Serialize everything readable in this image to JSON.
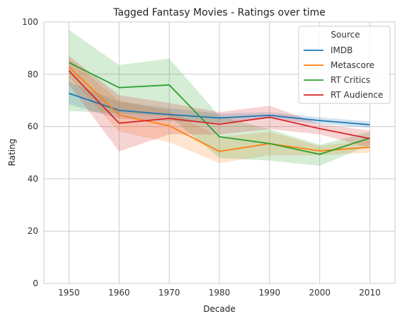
{
  "chart_data": {
    "type": "line",
    "title": "Tagged Fantasy Movies - Ratings over time",
    "xlabel": "Decade",
    "ylabel": "Rating",
    "x": [
      1950,
      1960,
      1970,
      1980,
      1990,
      2000,
      2010
    ],
    "xlim": [
      1945,
      2015
    ],
    "ylim": [
      0,
      100
    ],
    "yticks": [
      0,
      20,
      40,
      60,
      80,
      100
    ],
    "grid": true,
    "legend": {
      "title": "Source",
      "placement": "top-right"
    },
    "series": [
      {
        "name": "IMDB",
        "color": "#1f77b4",
        "values": [
          72.7,
          66.2,
          64.6,
          63.3,
          64.3,
          62.3,
          60.7
        ],
        "ci_low": [
          68.5,
          63.0,
          62.0,
          61.5,
          63.0,
          61.0,
          59.5
        ],
        "ci_high": [
          77.0,
          69.5,
          67.0,
          65.0,
          65.5,
          63.5,
          62.0
        ]
      },
      {
        "name": "Metascore",
        "color": "#ff7f0e",
        "values": [
          82.8,
          64.4,
          60.3,
          50.5,
          53.5,
          50.7,
          52.1
        ],
        "ci_low": [
          79.0,
          58.0,
          54.0,
          46.0,
          49.0,
          49.0,
          50.0
        ],
        "ci_high": [
          86.0,
          70.0,
          66.0,
          56.0,
          58.0,
          52.5,
          55.0
        ]
      },
      {
        "name": "RT Critics",
        "color": "#2ca02c",
        "values": [
          84.5,
          74.9,
          75.9,
          56.1,
          53.5,
          49.4,
          55.6
        ],
        "ci_low": [
          66.0,
          65.0,
          64.0,
          48.0,
          47.0,
          45.0,
          53.0
        ],
        "ci_high": [
          97.0,
          83.5,
          86.0,
          64.0,
          59.0,
          53.0,
          58.0
        ]
      },
      {
        "name": "RT Audience",
        "color": "#d62728",
        "values": [
          81.3,
          61.3,
          63.1,
          60.9,
          63.6,
          59.2,
          55.4
        ],
        "ci_low": [
          76.0,
          50.5,
          57.0,
          57.0,
          59.0,
          57.0,
          52.0
        ],
        "ci_high": [
          87.0,
          72.0,
          69.0,
          65.5,
          68.0,
          61.0,
          58.5
        ]
      }
    ]
  }
}
